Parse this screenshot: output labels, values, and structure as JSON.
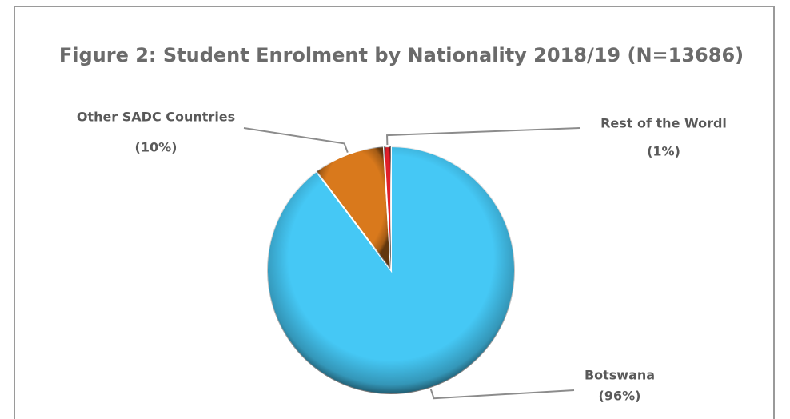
{
  "chart_data": {
    "type": "pie",
    "title": "Figure 2: Student Enrolment by Nationality 2018/19 (N=13686)",
    "categories": [
      "Botswana",
      "Other SADC Countries",
      "Rest of the Wordl"
    ],
    "values": [
      96,
      10,
      1
    ],
    "value_labels": [
      "(96%)",
      "(10%)",
      "(1%)"
    ],
    "colors": [
      "#45c8f5",
      "#d9791c",
      "#e0202a"
    ]
  }
}
